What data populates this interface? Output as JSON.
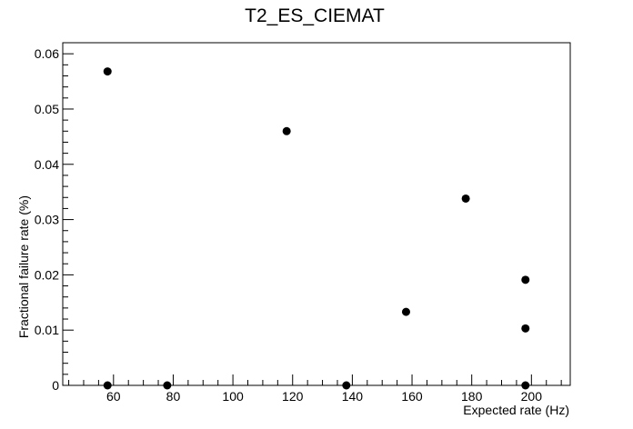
{
  "chart_data": {
    "type": "scatter",
    "title": "T2_ES_CIEMAT",
    "xlabel": "Expected rate (Hz)",
    "ylabel": "Fractional failure rate (%)",
    "xlim": [
      43,
      213
    ],
    "ylim": [
      0,
      0.062
    ],
    "x_ticks": [
      "60",
      "80",
      "100",
      "120",
      "140",
      "160",
      "180",
      "200"
    ],
    "y_ticks": [
      "0",
      "0.01",
      "0.02",
      "0.03",
      "0.04",
      "0.05",
      "0.06"
    ],
    "grid": false,
    "legend": "none",
    "marker_color": "#000000",
    "points": [
      {
        "x": 58,
        "y": 0.0568
      },
      {
        "x": 58,
        "y": 0
      },
      {
        "x": 78,
        "y": 0
      },
      {
        "x": 118,
        "y": 0.046
      },
      {
        "x": 138,
        "y": 0
      },
      {
        "x": 158,
        "y": 0.0133
      },
      {
        "x": 178,
        "y": 0.0338
      },
      {
        "x": 198,
        "y": 0.0191
      },
      {
        "x": 198,
        "y": 0.0103
      },
      {
        "x": 198,
        "y": 0
      }
    ]
  }
}
